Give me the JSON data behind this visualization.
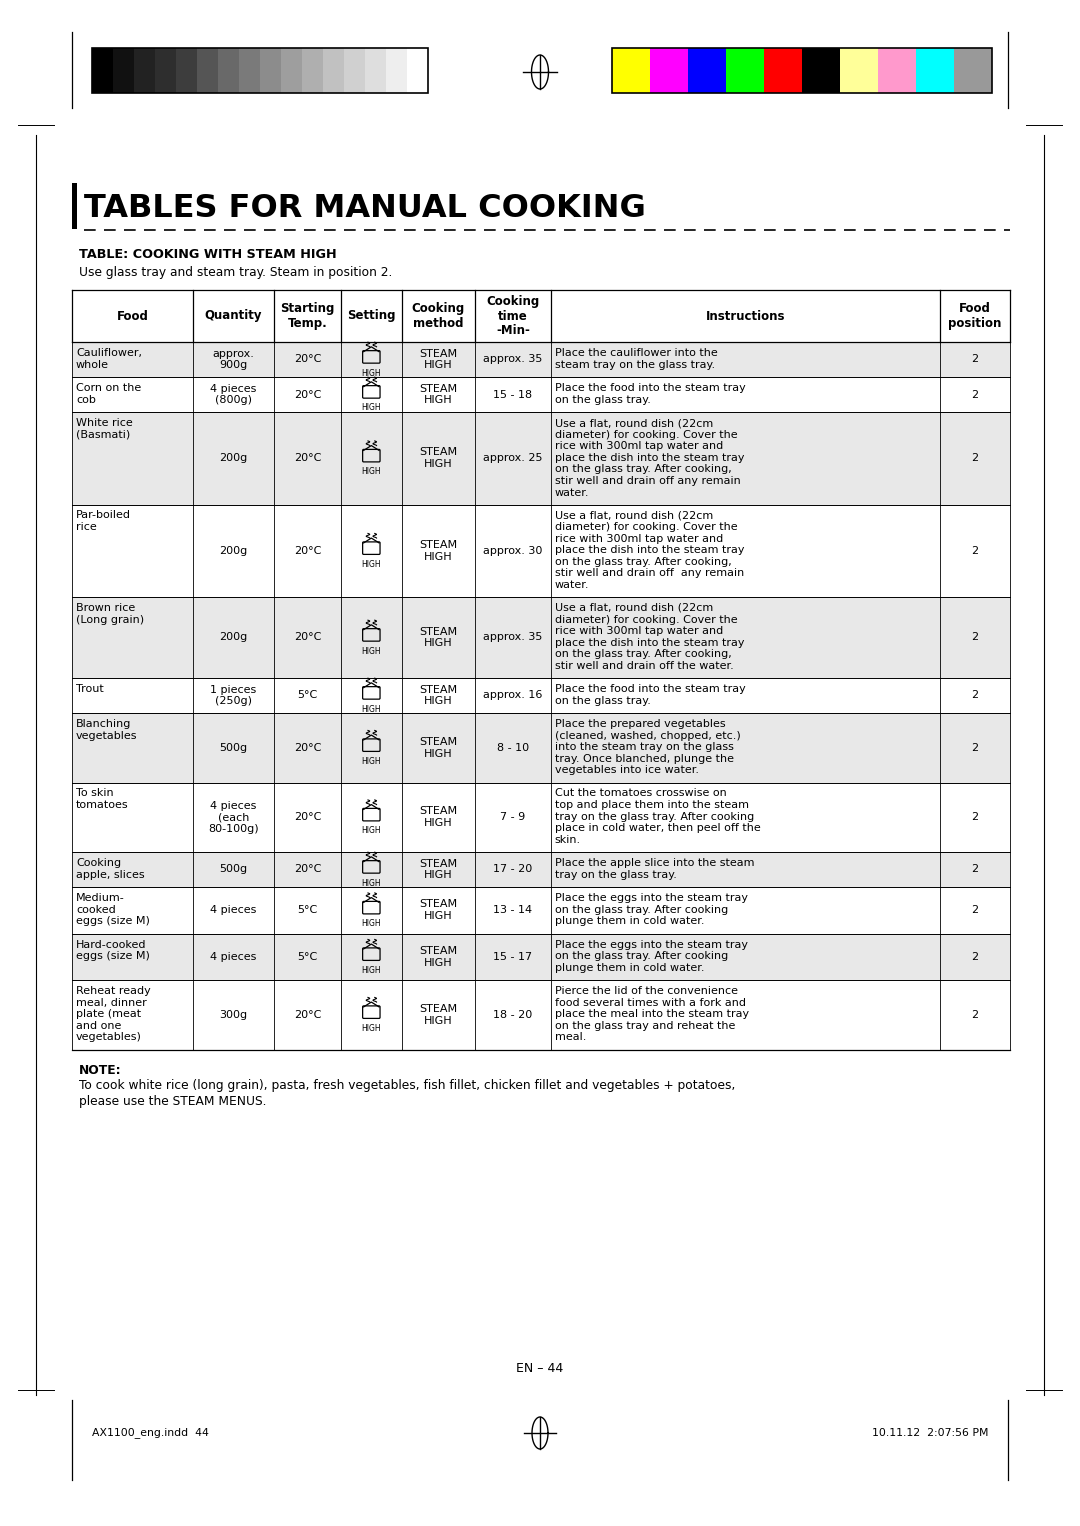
{
  "title": "TABLES FOR MANUAL COOKING",
  "subtitle_bold": "TABLE: COOKING WITH STEAM HIGH",
  "subtitle_normal": "Use glass tray and steam tray. Steam in position 2.",
  "col_headers": [
    "Food",
    "Quantity",
    "Starting\nTemp.",
    "Setting",
    "Cooking\nmethod",
    "Cooking\ntime\n-Min-",
    "Instructions",
    "Food\nposition"
  ],
  "rows": [
    {
      "food": "Cauliflower,\nwhole",
      "quantity": "approx.\n900g",
      "temp": "20°C",
      "method": "STEAM\nHIGH",
      "time": "approx. 35",
      "instructions": "Place the cauliflower into the\nsteam tray on the glass tray.",
      "position": "2",
      "bg": "#e8e8e8"
    },
    {
      "food": "Corn on the\ncob",
      "quantity": "4 pieces\n(800g)",
      "temp": "20°C",
      "method": "STEAM\nHIGH",
      "time": "15 - 18",
      "instructions": "Place the food into the steam tray\non the glass tray.",
      "position": "2",
      "bg": "#ffffff"
    },
    {
      "food": "White rice\n(Basmati)",
      "quantity": "200g",
      "temp": "20°C",
      "method": "STEAM\nHIGH",
      "time": "approx. 25",
      "instructions": "Use a flat, round dish (22cm\ndiameter) for cooking. Cover the\nrice with 300ml tap water and\nplace the dish into the steam tray\non the glass tray. After cooking,\nstir well and drain off any remain\nwater.",
      "position": "2",
      "bg": "#e8e8e8"
    },
    {
      "food": "Par-boiled\nrice",
      "quantity": "200g",
      "temp": "20°C",
      "method": "STEAM\nHIGH",
      "time": "approx. 30",
      "instructions": "Use a flat, round dish (22cm\ndiameter) for cooking. Cover the\nrice with 300ml tap water and\nplace the dish into the steam tray\non the glass tray. After cooking,\nstir well and drain off  any remain\nwater.",
      "position": "2",
      "bg": "#ffffff"
    },
    {
      "food": "Brown rice\n(Long grain)",
      "quantity": "200g",
      "temp": "20°C",
      "method": "STEAM\nHIGH",
      "time": "approx. 35",
      "instructions": "Use a flat, round dish (22cm\ndiameter) for cooking. Cover the\nrice with 300ml tap water and\nplace the dish into the steam tray\non the glass tray. After cooking,\nstir well and drain off the water.",
      "position": "2",
      "bg": "#e8e8e8"
    },
    {
      "food": "Trout",
      "quantity": "1 pieces\n(250g)",
      "temp": "5°C",
      "method": "STEAM\nHIGH",
      "time": "approx. 16",
      "instructions": "Place the food into the steam tray\non the glass tray.",
      "position": "2",
      "bg": "#ffffff"
    },
    {
      "food": "Blanching\nvegetables",
      "quantity": "500g",
      "temp": "20°C",
      "method": "STEAM\nHIGH",
      "time": "8 - 10",
      "instructions": "Place the prepared vegetables\n(cleaned, washed, chopped, etc.)\ninto the steam tray on the glass\ntray. Once blanched, plunge the\nvegetables into ice water.",
      "position": "2",
      "bg": "#e8e8e8"
    },
    {
      "food": "To skin\ntomatoes",
      "quantity": "4 pieces\n(each\n80-100g)",
      "temp": "20°C",
      "method": "STEAM\nHIGH",
      "time": "7 - 9",
      "instructions": "Cut the tomatoes crosswise on\ntop and place them into the steam\ntray on the glass tray. After cooking\nplace in cold water, then peel off the\nskin.",
      "position": "2",
      "bg": "#ffffff"
    },
    {
      "food": "Cooking\napple, slices",
      "quantity": "500g",
      "temp": "20°C",
      "method": "STEAM\nHIGH",
      "time": "17 - 20",
      "instructions": "Place the apple slice into the steam\ntray on the glass tray.",
      "position": "2",
      "bg": "#e8e8e8"
    },
    {
      "food": "Medium-\ncooked\neggs (size M)",
      "quantity": "4 pieces",
      "temp": "5°C",
      "method": "STEAM\nHIGH",
      "time": "13 - 14",
      "instructions": "Place the eggs into the steam tray\non the glass tray. After cooking\nplunge them in cold water.",
      "position": "2",
      "bg": "#ffffff"
    },
    {
      "food": "Hard-cooked\neggs (size M)",
      "quantity": "4 pieces",
      "temp": "5°C",
      "method": "STEAM\nHIGH",
      "time": "15 - 17",
      "instructions": "Place the eggs into the steam tray\non the glass tray. After cooking\nplunge them in cold water.",
      "position": "2",
      "bg": "#e8e8e8"
    },
    {
      "food": "Reheat ready\nmeal, dinner\nplate (meat\nand one\nvegetables)",
      "quantity": "300g",
      "temp": "20°C",
      "method": "STEAM\nHIGH",
      "time": "18 - 20",
      "instructions": "Pierce the lid of the convenience\nfood several times with a fork and\nplace the meal into the steam tray\non the glass tray and reheat the\nmeal.",
      "position": "2",
      "bg": "#ffffff"
    }
  ],
  "note_bold": "NOTE:",
  "note_text": "To cook white rice (long grain), pasta, fresh vegetables, fish fillet, chicken fillet and vegetables + potatoes,\nplease use the STEAM MENUS.",
  "page_number": "EN – 44",
  "footer_left": "AX1100_eng.indd  44",
  "footer_right": "10.11.12  2:07:56 PM",
  "grayscale_colors": [
    "#000000",
    "#111111",
    "#222222",
    "#2e2e2e",
    "#3d3d3d",
    "#555555",
    "#696969",
    "#7a7a7a",
    "#8c8c8c",
    "#9e9e9e",
    "#afafaf",
    "#c1c1c1",
    "#d0d0d0",
    "#dedede",
    "#eeeeee",
    "#ffffff"
  ],
  "color_bars": [
    "#ffff00",
    "#ff00ff",
    "#0000ff",
    "#00ff00",
    "#ff0000",
    "#000000",
    "#ffff99",
    "#ff99cc",
    "#00ffff",
    "#999999"
  ]
}
